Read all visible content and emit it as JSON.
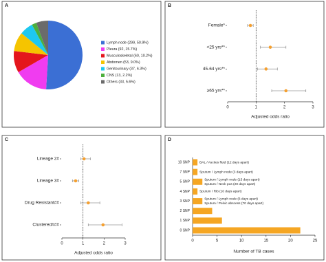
{
  "chart_data": [
    {
      "type": "pie",
      "panel": "A",
      "series": [
        {
          "name": "Lymph node (299, 50.9%)",
          "color": "#3b6fd4",
          "values": [
            50.9
          ]
        },
        {
          "name": "Pleura (92, 15.7%)",
          "color": "#f03cf0",
          "values": [
            15.7
          ]
        },
        {
          "name": "Musculoskeletal (60, 10.2%)",
          "color": "#e4161c",
          "values": [
            10.2
          ]
        },
        {
          "name": "Abdomen (53, 9.0%)",
          "color": "#f5c400",
          "values": [
            9.0
          ]
        },
        {
          "name": "Genitourinary (37, 6.3%)",
          "color": "#1ec8ef",
          "values": [
            6.3
          ]
        },
        {
          "name": "CNS (13, 2.2%)",
          "color": "#4caf3c",
          "values": [
            2.2
          ]
        },
        {
          "name": "Others (33, 5.6%)",
          "color": "#6b6b6b",
          "values": [
            5.6
          ]
        }
      ]
    },
    {
      "type": "forest",
      "panel": "B",
      "xlabel": "Adjusted odds ratio",
      "categories": [
        "Female*",
        "<25 yrs**",
        "45-64 yrs**",
        "≥65 yrs**"
      ],
      "values": [
        0.8,
        1.5,
        1.35,
        2.05
      ],
      "lower": [
        0.7,
        1.15,
        1.05,
        1.55
      ],
      "upper": [
        0.9,
        2.05,
        1.75,
        2.75
      ],
      "color": "#f5a030",
      "reference_line": 1,
      "xlim": [
        0,
        3
      ],
      "xticks": [
        0,
        1,
        2,
        3
      ]
    },
    {
      "type": "forest",
      "panel": "C",
      "xlabel": "Adjusted odds ratio",
      "categories": [
        "Lineage 2#",
        "Lineage 3#",
        "Drug Resistant##",
        "Clustered###"
      ],
      "values": [
        1.05,
        0.65,
        1.25,
        1.95
      ],
      "lower": [
        0.9,
        0.5,
        0.9,
        1.25
      ],
      "upper": [
        1.35,
        0.8,
        1.8,
        2.85
      ],
      "color": "#f5a030",
      "reference_line": 1,
      "xlim": [
        0,
        3
      ],
      "xticks": [
        0,
        1,
        2,
        3
      ]
    },
    {
      "type": "bar",
      "orientation": "horizontal",
      "panel": "D",
      "xlabel": "Number of TB cases",
      "categories": [
        "10 SNP",
        "7 SNP",
        "5 SNP",
        "4 SNP",
        "3 SNP",
        "2 SNP",
        "1 SNP",
        "0 SNP"
      ],
      "values": [
        1,
        1,
        2,
        1,
        2,
        4,
        6,
        22
      ],
      "color": "#f5a623",
      "bar_notes": [
        [
          "BAL / Ascites fluid (12 days apart)"
        ],
        [
          "Sputum / Lymph node (3 days apart)"
        ],
        [
          "Sputum / Lymph node (15 days apart)",
          "Sputum / Neck pus (20 days apart)"
        ],
        [
          "Sputum / Rib (10 days apart)"
        ],
        [
          "Sputum / Lymph node (6 days apart)",
          "Sputum / Pelvic abscess (70 days apart)"
        ],
        null,
        null,
        null
      ],
      "xlim": [
        0,
        25
      ],
      "xticks": [
        0,
        5,
        10,
        15,
        20,
        25
      ]
    }
  ]
}
